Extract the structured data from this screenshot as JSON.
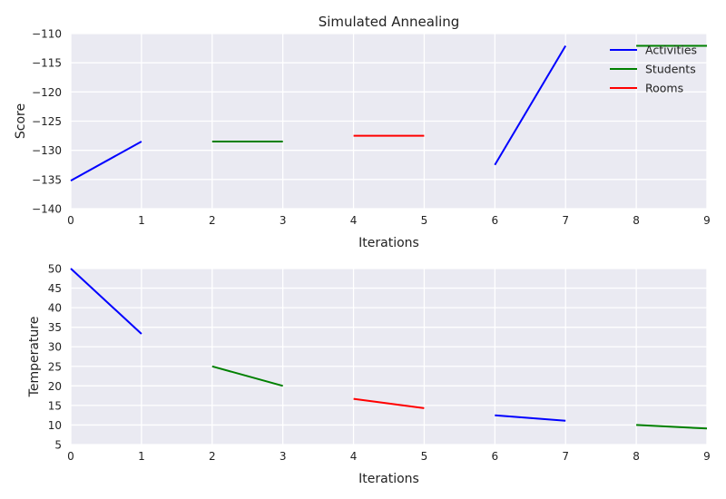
{
  "chart_data": [
    {
      "type": "line",
      "title": "Simulated Annealing",
      "xlabel": "Iterations",
      "ylabel": "Score",
      "xlim": [
        0,
        9
      ],
      "ylim": [
        -140,
        -110
      ],
      "xticks": [
        "0",
        "1",
        "2",
        "3",
        "4",
        "5",
        "6",
        "7",
        "8",
        "9"
      ],
      "yticks": [
        "−110",
        "−115",
        "−120",
        "−125",
        "−130",
        "−135",
        "−140"
      ],
      "ytick_values": [
        -110,
        -115,
        -120,
        -125,
        -130,
        -135,
        -140
      ],
      "grid": true,
      "legend_position": "top-right",
      "legend": [
        {
          "name": "Activities",
          "color": "#0000ff"
        },
        {
          "name": "Students",
          "color": "#008000"
        },
        {
          "name": "Rooms",
          "color": "#ff0000"
        }
      ],
      "segments": [
        {
          "series": "Activities",
          "color": "#0000ff",
          "x": [
            0,
            1
          ],
          "y": [
            -135.2,
            -128.5
          ]
        },
        {
          "series": "Students",
          "color": "#008000",
          "x": [
            2,
            3
          ],
          "y": [
            -128.5,
            -128.5
          ]
        },
        {
          "series": "Rooms",
          "color": "#ff0000",
          "x": [
            4,
            5
          ],
          "y": [
            -127.5,
            -127.5
          ]
        },
        {
          "series": "Activities",
          "color": "#0000ff",
          "x": [
            6,
            7
          ],
          "y": [
            -132.5,
            -112.1
          ]
        },
        {
          "series": "Students",
          "color": "#008000",
          "x": [
            8,
            9
          ],
          "y": [
            -112.1,
            -112.1
          ]
        }
      ]
    },
    {
      "type": "line",
      "title": "",
      "xlabel": "Iterations",
      "ylabel": "Temperature",
      "xlim": [
        0,
        9
      ],
      "ylim": [
        5,
        50
      ],
      "xticks": [
        "0",
        "1",
        "2",
        "3",
        "4",
        "5",
        "6",
        "7",
        "8",
        "9"
      ],
      "yticks": [
        "50",
        "45",
        "40",
        "35",
        "30",
        "25",
        "20",
        "15",
        "10",
        "5"
      ],
      "ytick_values": [
        50,
        45,
        40,
        35,
        30,
        25,
        20,
        15,
        10,
        5
      ],
      "grid": true,
      "segments": [
        {
          "series": "Activities",
          "color": "#0000ff",
          "x": [
            0,
            1
          ],
          "y": [
            50,
            33.3
          ]
        },
        {
          "series": "Students",
          "color": "#008000",
          "x": [
            2,
            3
          ],
          "y": [
            25,
            20
          ]
        },
        {
          "series": "Rooms",
          "color": "#ff0000",
          "x": [
            4,
            5
          ],
          "y": [
            16.7,
            14.3
          ]
        },
        {
          "series": "Activities",
          "color": "#0000ff",
          "x": [
            6,
            7
          ],
          "y": [
            12.5,
            11.1
          ]
        },
        {
          "series": "Students",
          "color": "#008000",
          "x": [
            8,
            9
          ],
          "y": [
            10,
            9.1
          ]
        }
      ]
    }
  ]
}
